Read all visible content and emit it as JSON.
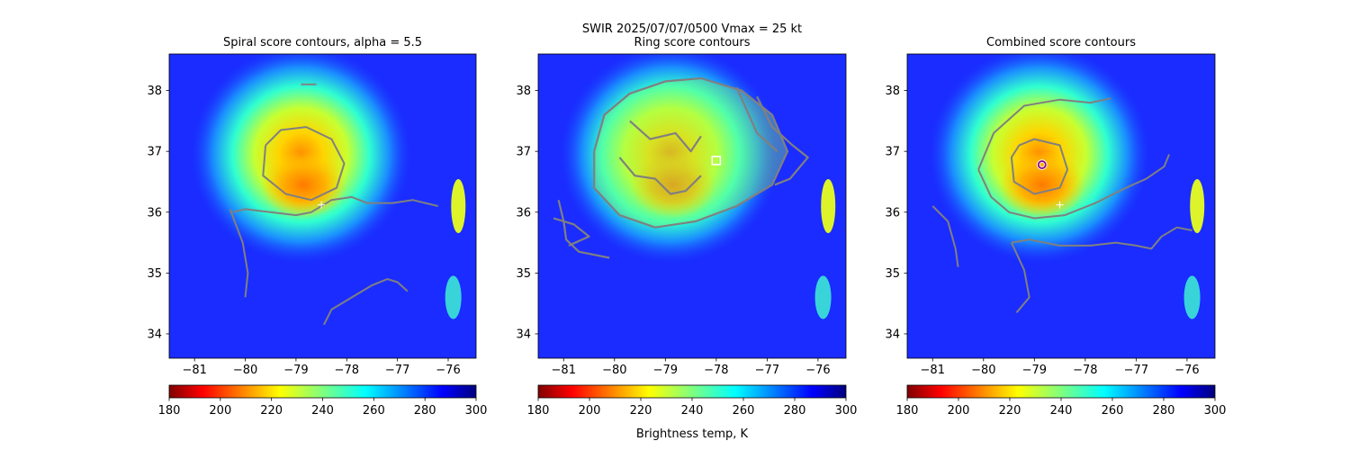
{
  "figure": {
    "suptitle_line1": "SWIR  2025/07/07/0500    Vmax = 25 kt",
    "colorbar_label": "Brightness temp, K"
  },
  "chart_data": [
    {
      "type": "heatmap",
      "title": "Spiral score contours, alpha =  5.5",
      "xlabel": "",
      "ylabel": "",
      "xlim": [
        -81.5,
        -75.45
      ],
      "ylim": [
        33.6,
        38.6
      ],
      "xticks": [
        -81,
        -80,
        -79,
        -78,
        -77,
        -76
      ],
      "yticks": [
        34,
        35,
        36,
        37,
        38
      ],
      "tick_labels_x": [
        "−81",
        "−80",
        "−79",
        "−78",
        "−77",
        "−76"
      ],
      "tick_labels_y": [
        "34",
        "35",
        "36",
        "37",
        "38"
      ],
      "colorbar": {
        "range": [
          180,
          300
        ],
        "ticks": [
          "180",
          "200",
          "220",
          "240",
          "260",
          "280",
          "300"
        ],
        "colormap": "jet_r"
      },
      "marker_center": {
        "lon": -78.5,
        "lat": 36.12,
        "symbol": "+",
        "color": "#ffffff"
      },
      "contours": [
        [
          [
            -79.6,
            37.1
          ],
          [
            -79.3,
            37.35
          ],
          [
            -78.8,
            37.4
          ],
          [
            -78.3,
            37.2
          ],
          [
            -78.05,
            36.8
          ],
          [
            -78.2,
            36.4
          ],
          [
            -78.7,
            36.2
          ],
          [
            -79.2,
            36.3
          ],
          [
            -79.65,
            36.6
          ],
          [
            -79.6,
            37.1
          ]
        ],
        [
          [
            -78.9,
            38.1
          ],
          [
            -78.6,
            38.1
          ]
        ],
        [
          [
            -80.25,
            36.0
          ],
          [
            -80.0,
            36.05
          ],
          [
            -79.5,
            36.0
          ],
          [
            -79.0,
            35.95
          ],
          [
            -78.7,
            36.0
          ],
          [
            -78.3,
            36.2
          ],
          [
            -77.9,
            36.25
          ],
          [
            -77.6,
            36.15
          ],
          [
            -77.1,
            36.15
          ],
          [
            -76.7,
            36.2
          ],
          [
            -76.2,
            36.1
          ]
        ],
        [
          [
            -80.3,
            36.05
          ],
          [
            -80.05,
            35.5
          ],
          [
            -79.95,
            35.0
          ],
          [
            -80.0,
            34.6
          ]
        ],
        [
          [
            -78.45,
            34.15
          ],
          [
            -78.3,
            34.4
          ],
          [
            -77.9,
            34.6
          ],
          [
            -77.5,
            34.8
          ],
          [
            -77.2,
            34.9
          ],
          [
            -77.0,
            34.85
          ],
          [
            -76.8,
            34.7
          ]
        ]
      ]
    },
    {
      "type": "heatmap",
      "title": "Ring score contours",
      "xlabel": "",
      "ylabel": "",
      "xlim": [
        -81.5,
        -75.45
      ],
      "ylim": [
        33.6,
        38.6
      ],
      "xticks": [
        -81,
        -80,
        -79,
        -78,
        -77,
        -76
      ],
      "yticks": [
        34,
        35,
        36,
        37,
        38
      ],
      "tick_labels_x": [
        "−81",
        "−80",
        "−79",
        "−78",
        "−77",
        "−76"
      ],
      "tick_labels_y": [
        "34",
        "35",
        "36",
        "37",
        "38"
      ],
      "colorbar": {
        "range": [
          180,
          300
        ],
        "ticks": [
          "180",
          "200",
          "220",
          "240",
          "260",
          "280",
          "300"
        ],
        "colormap": "jet_r"
      },
      "marker_center": {
        "lon": -78.0,
        "lat": 36.85,
        "symbol": "square",
        "color": "#ffffff"
      },
      "filled_region": [
        [
          -80.4,
          37.0
        ],
        [
          -80.2,
          37.6
        ],
        [
          -79.7,
          37.95
        ],
        [
          -79.0,
          38.15
        ],
        [
          -78.3,
          38.2
        ],
        [
          -77.5,
          38.0
        ],
        [
          -76.9,
          37.6
        ],
        [
          -76.6,
          37.0
        ],
        [
          -76.9,
          36.45
        ],
        [
          -77.6,
          36.1
        ],
        [
          -78.4,
          35.85
        ],
        [
          -79.2,
          35.75
        ],
        [
          -79.9,
          35.95
        ],
        [
          -80.4,
          36.4
        ],
        [
          -80.4,
          37.0
        ]
      ],
      "contours": [
        [
          [
            -80.4,
            37.0
          ],
          [
            -80.2,
            37.6
          ],
          [
            -79.7,
            37.95
          ],
          [
            -79.0,
            38.15
          ],
          [
            -78.3,
            38.2
          ],
          [
            -77.5,
            38.0
          ],
          [
            -76.9,
            37.6
          ],
          [
            -76.6,
            37.0
          ],
          [
            -76.9,
            36.45
          ],
          [
            -77.6,
            36.1
          ],
          [
            -78.4,
            35.85
          ],
          [
            -79.2,
            35.75
          ],
          [
            -79.9,
            35.95
          ],
          [
            -80.4,
            36.4
          ],
          [
            -80.4,
            37.0
          ]
        ],
        [
          [
            -81.1,
            36.2
          ],
          [
            -81.0,
            35.85
          ],
          [
            -80.95,
            35.55
          ],
          [
            -80.7,
            35.35
          ],
          [
            -80.4,
            35.3
          ],
          [
            -80.1,
            35.25
          ]
        ],
        [
          [
            -81.2,
            35.9
          ],
          [
            -80.8,
            35.8
          ],
          [
            -80.5,
            35.6
          ],
          [
            -80.9,
            35.45
          ]
        ],
        [
          [
            -77.2,
            37.9
          ],
          [
            -76.9,
            37.4
          ],
          [
            -76.5,
            37.1
          ],
          [
            -76.2,
            36.9
          ],
          [
            -76.55,
            36.55
          ],
          [
            -76.85,
            36.45
          ]
        ],
        [
          [
            -77.6,
            38.05
          ],
          [
            -77.2,
            37.3
          ],
          [
            -76.8,
            37.0
          ]
        ],
        [
          [
            -79.9,
            36.9
          ],
          [
            -79.6,
            36.6
          ],
          [
            -79.2,
            36.55
          ],
          [
            -78.9,
            36.3
          ],
          [
            -78.6,
            36.35
          ],
          [
            -78.3,
            36.6
          ]
        ],
        [
          [
            -79.7,
            37.5
          ],
          [
            -79.3,
            37.2
          ],
          [
            -78.8,
            37.3
          ],
          [
            -78.5,
            37.0
          ],
          [
            -78.3,
            37.25
          ]
        ]
      ]
    },
    {
      "type": "heatmap",
      "title": "Combined score contours",
      "xlabel": "",
      "ylabel": "",
      "xlim": [
        -81.5,
        -75.45
      ],
      "ylim": [
        33.6,
        38.6
      ],
      "xticks": [
        -81,
        -80,
        -79,
        -78,
        -77,
        -76
      ],
      "yticks": [
        34,
        35,
        36,
        37,
        38
      ],
      "tick_labels_x": [
        "−81",
        "−80",
        "−79",
        "−78",
        "−77",
        "−76"
      ],
      "tick_labels_y": [
        "34",
        "35",
        "36",
        "37",
        "38"
      ],
      "colorbar": {
        "range": [
          180,
          300
        ],
        "ticks": [
          "180",
          "200",
          "220",
          "240",
          "260",
          "280",
          "300"
        ],
        "colormap": "jet_r"
      },
      "marker_center": {
        "lon": -78.5,
        "lat": 36.12,
        "symbol": "+",
        "color": "#ffffff"
      },
      "marker_best": {
        "lon": -78.85,
        "lat": 36.78,
        "symbol": "circle",
        "color": "#8b008b"
      },
      "contours": [
        [
          [
            -79.3,
            37.1
          ],
          [
            -79.0,
            37.2
          ],
          [
            -78.5,
            37.1
          ],
          [
            -78.35,
            36.7
          ],
          [
            -78.5,
            36.4
          ],
          [
            -79.0,
            36.3
          ],
          [
            -79.4,
            36.5
          ],
          [
            -79.45,
            36.9
          ],
          [
            -79.3,
            37.1
          ]
        ],
        [
          [
            -80.1,
            36.7
          ],
          [
            -79.8,
            37.3
          ],
          [
            -79.2,
            37.75
          ],
          [
            -78.5,
            37.85
          ],
          [
            -77.9,
            37.8
          ],
          [
            -77.5,
            37.87
          ]
        ],
        [
          [
            -80.1,
            36.7
          ],
          [
            -79.85,
            36.25
          ],
          [
            -79.5,
            36.0
          ],
          [
            -79.0,
            35.9
          ],
          [
            -78.4,
            35.95
          ],
          [
            -77.8,
            36.15
          ],
          [
            -77.2,
            36.4
          ],
          [
            -76.8,
            36.55
          ],
          [
            -76.45,
            36.75
          ],
          [
            -76.35,
            36.95
          ]
        ],
        [
          [
            -81.0,
            36.1
          ],
          [
            -80.7,
            35.85
          ],
          [
            -80.55,
            35.4
          ],
          [
            -80.5,
            35.1
          ]
        ],
        [
          [
            -79.45,
            35.5
          ],
          [
            -79.1,
            35.55
          ],
          [
            -78.5,
            35.45
          ],
          [
            -77.9,
            35.45
          ],
          [
            -77.4,
            35.5
          ],
          [
            -77.0,
            35.45
          ],
          [
            -76.7,
            35.4
          ],
          [
            -76.5,
            35.6
          ],
          [
            -76.2,
            35.75
          ],
          [
            -75.9,
            35.7
          ]
        ],
        [
          [
            -79.45,
            35.5
          ],
          [
            -79.2,
            35.05
          ],
          [
            -79.1,
            34.6
          ],
          [
            -79.35,
            34.35
          ]
        ]
      ]
    }
  ]
}
